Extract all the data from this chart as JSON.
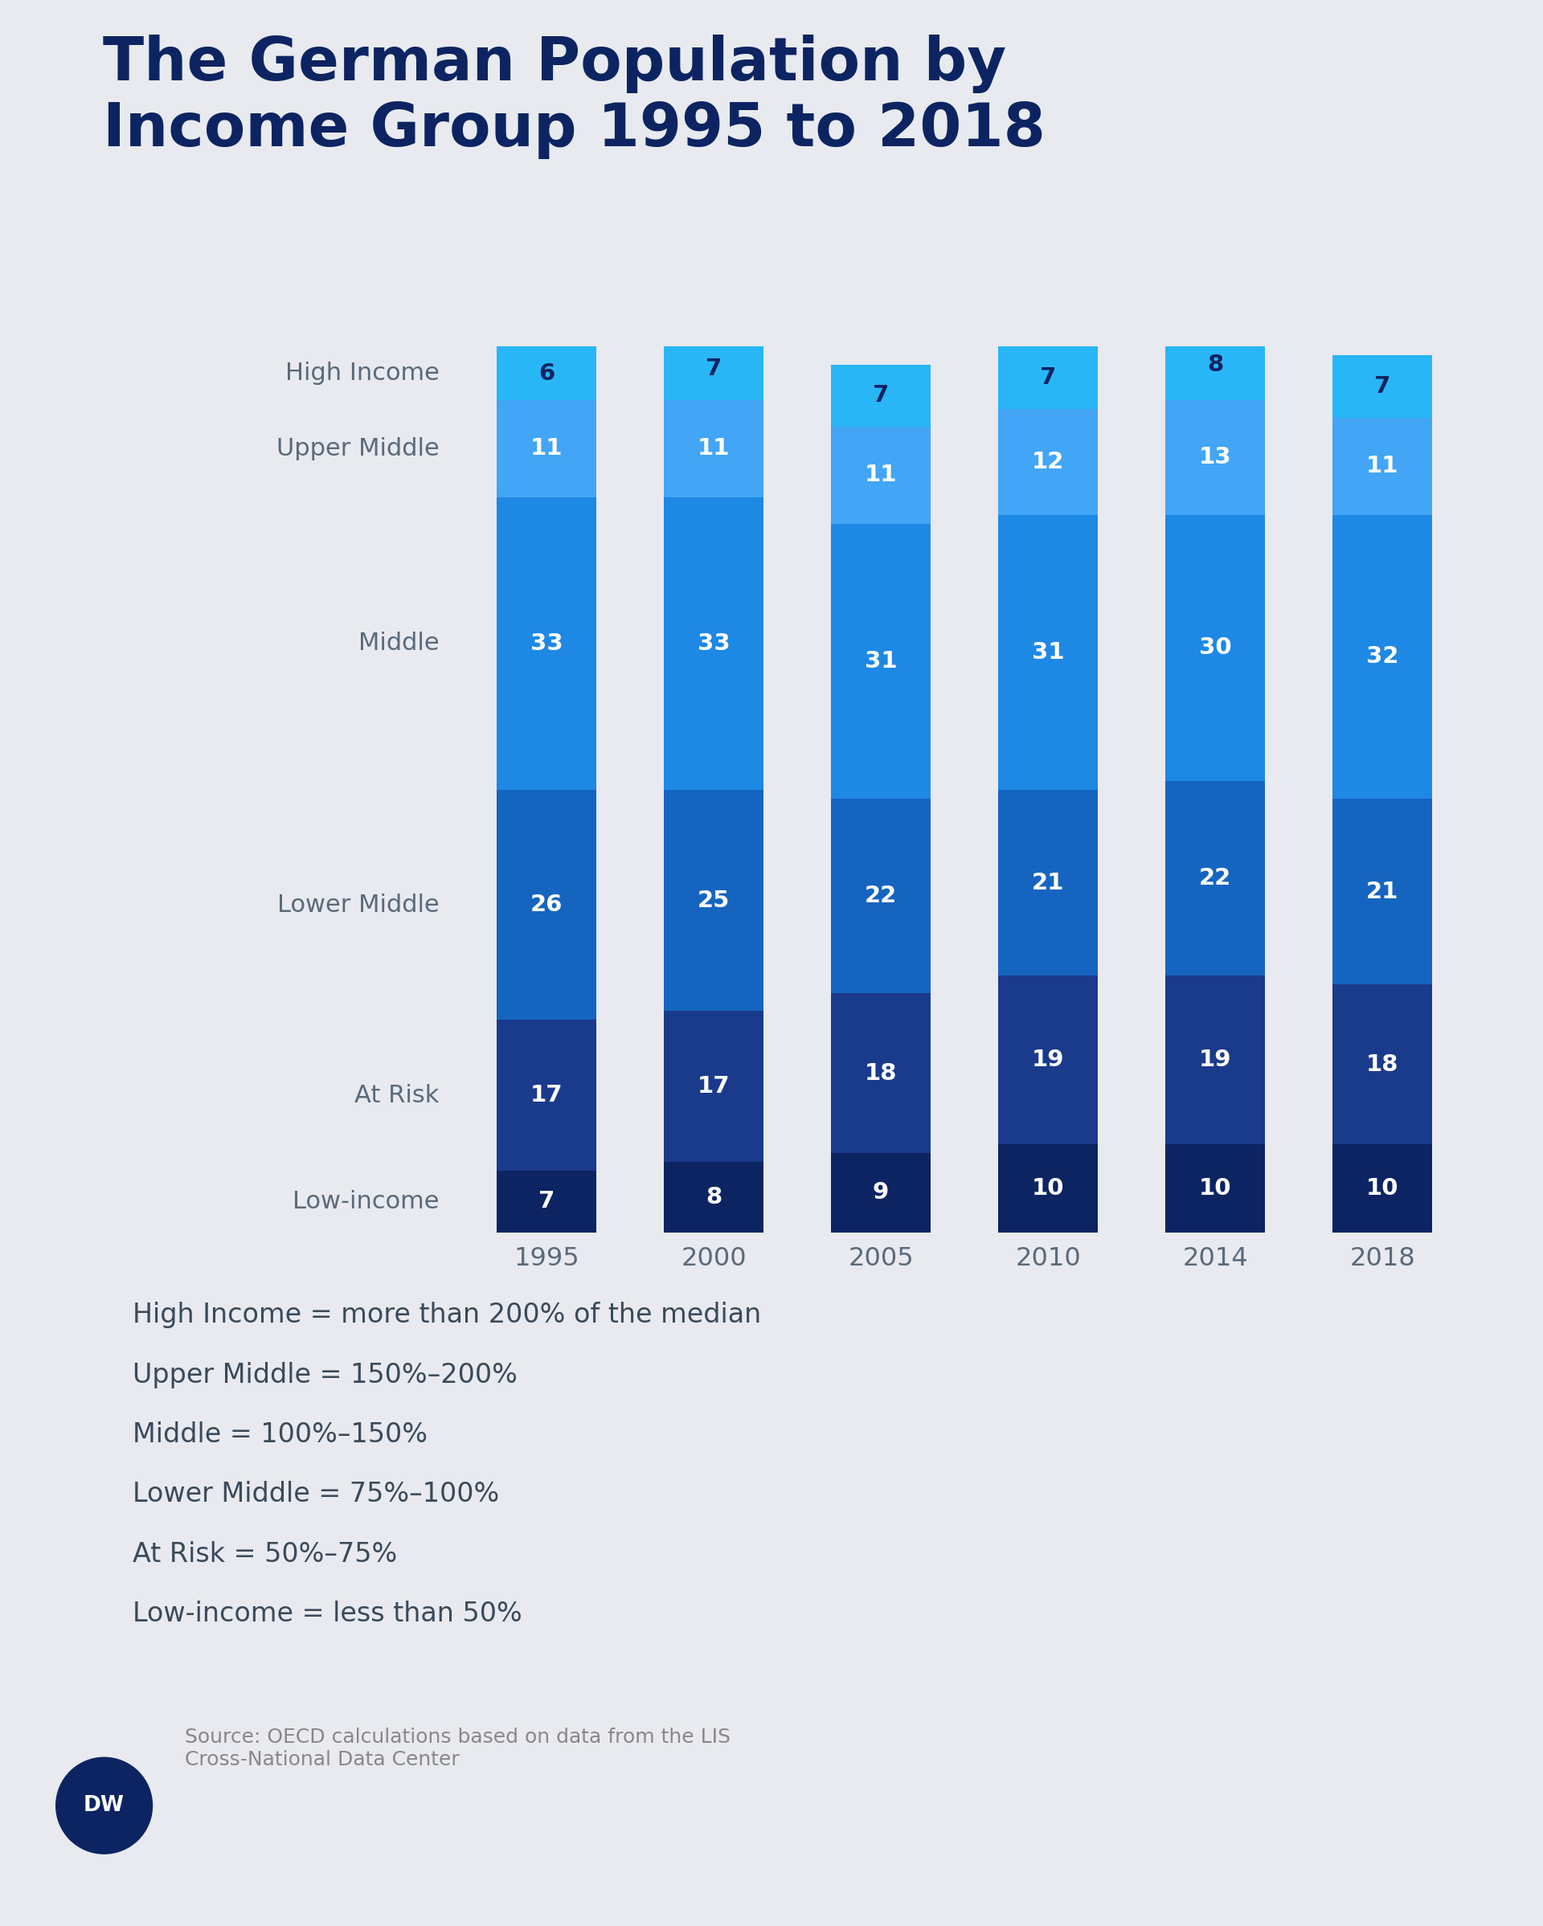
{
  "title": "The German Population by\nIncome Group 1995 to 2018",
  "years": [
    "1995",
    "2000",
    "2005",
    "2010",
    "2014",
    "2018"
  ],
  "categories": [
    "Low-income",
    "At Risk",
    "Lower Middle",
    "Middle",
    "Upper Middle",
    "High Income"
  ],
  "values": {
    "Low-income": [
      7,
      8,
      9,
      10,
      10,
      10
    ],
    "At Risk": [
      17,
      17,
      18,
      19,
      19,
      18
    ],
    "Lower Middle": [
      26,
      25,
      22,
      21,
      22,
      21
    ],
    "Middle": [
      33,
      33,
      31,
      31,
      30,
      32
    ],
    "Upper Middle": [
      11,
      11,
      11,
      12,
      13,
      11
    ],
    "High Income": [
      6,
      7,
      7,
      7,
      8,
      7
    ]
  },
  "colors": {
    "Low-income": "#0c2461",
    "At Risk": "#1a3a8c",
    "Lower Middle": "#1565c0",
    "Middle": "#1e88e5",
    "Upper Middle": "#42a5f5",
    "High Income": "#29b6f6"
  },
  "label_colors": {
    "Low-income": "white",
    "At Risk": "white",
    "Lower Middle": "white",
    "Middle": "white",
    "Upper Middle": "white",
    "High Income": "#0c2461"
  },
  "legend_lines": [
    "High Income = more than 200% of the median",
    "Upper Middle = 150%–200%",
    "Middle = 100%–150%",
    "Lower Middle = 75%–100%",
    "At Risk = 50%–75%",
    "Low-income = less than 50%"
  ],
  "source_text": "Source: OECD calculations based on data from the LIS\nCross-National Data Center",
  "bg_color": "#e8eaef",
  "bar_width": 0.6,
  "title_color": "#0c2461",
  "label_text_color": "#5a6a7a",
  "legend_text_color": "#3a4a5a"
}
